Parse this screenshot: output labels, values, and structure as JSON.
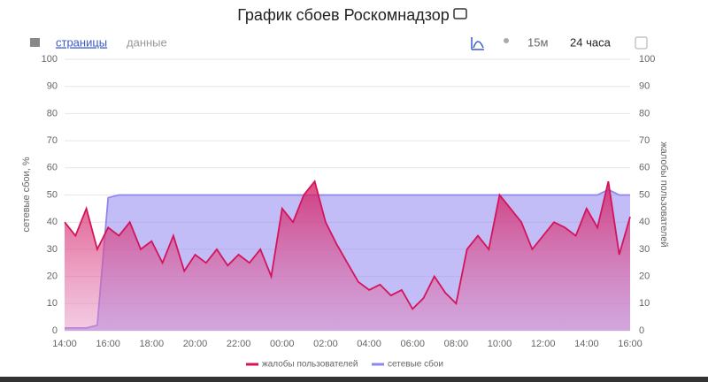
{
  "chart_data": {
    "type": "area",
    "title": "График сбоев Роскомнадзор",
    "toolbar": {
      "pages": "страницы",
      "data": "данные",
      "interval": "15м",
      "range": "24 часа"
    },
    "y_label": "сетевые сбои, %",
    "y2_label": "жалобы пользователей",
    "categories": [
      "14:00",
      null,
      null,
      null,
      "16:00",
      null,
      null,
      null,
      "18:00",
      null,
      null,
      null,
      "20:00",
      null,
      null,
      null,
      "22:00",
      null,
      null,
      null,
      "00:00",
      null,
      null,
      null,
      "02:00",
      null,
      null,
      null,
      "04:00",
      null,
      null,
      null,
      "06:00",
      null,
      null,
      null,
      "08:00",
      null,
      null,
      null,
      "10:00",
      null,
      null,
      null,
      "12:00",
      null,
      null,
      null,
      "14:00",
      null,
      null,
      null,
      "16:00"
    ],
    "series": [
      {
        "name": "сетевые сбои",
        "color": "#8f86f0",
        "axis": "y",
        "values": [
          1,
          1,
          1,
          2,
          49,
          50,
          50,
          50,
          50,
          50,
          50,
          50,
          50,
          50,
          50,
          50,
          50,
          50,
          50,
          50,
          50,
          50,
          50,
          50,
          50,
          50,
          50,
          50,
          50,
          50,
          50,
          50,
          50,
          50,
          50,
          50,
          50,
          50,
          50,
          50,
          50,
          50,
          50,
          50,
          50,
          50,
          50,
          50,
          50,
          50,
          52,
          50,
          50
        ]
      },
      {
        "name": "жалобы пользователей",
        "color": "#d4145a",
        "axis": "y2",
        "values": [
          40,
          35,
          45,
          30,
          38,
          35,
          40,
          30,
          33,
          25,
          35,
          22,
          28,
          25,
          30,
          24,
          28,
          25,
          30,
          20,
          45,
          40,
          50,
          55,
          40,
          32,
          25,
          18,
          15,
          17,
          13,
          15,
          8,
          12,
          20,
          14,
          10,
          30,
          35,
          30,
          50,
          45,
          40,
          30,
          35,
          40,
          38,
          35,
          45,
          38,
          55,
          28,
          42
        ]
      }
    ],
    "ylim": [
      0,
      100
    ],
    "yticks": [
      0,
      10,
      20,
      30,
      40,
      50,
      60,
      70,
      80,
      90,
      100
    ],
    "y2lim": [
      0,
      100
    ],
    "y2ticks": [
      0,
      10,
      20,
      30,
      40,
      50,
      60,
      70,
      80,
      90,
      100
    ],
    "grid": true
  }
}
